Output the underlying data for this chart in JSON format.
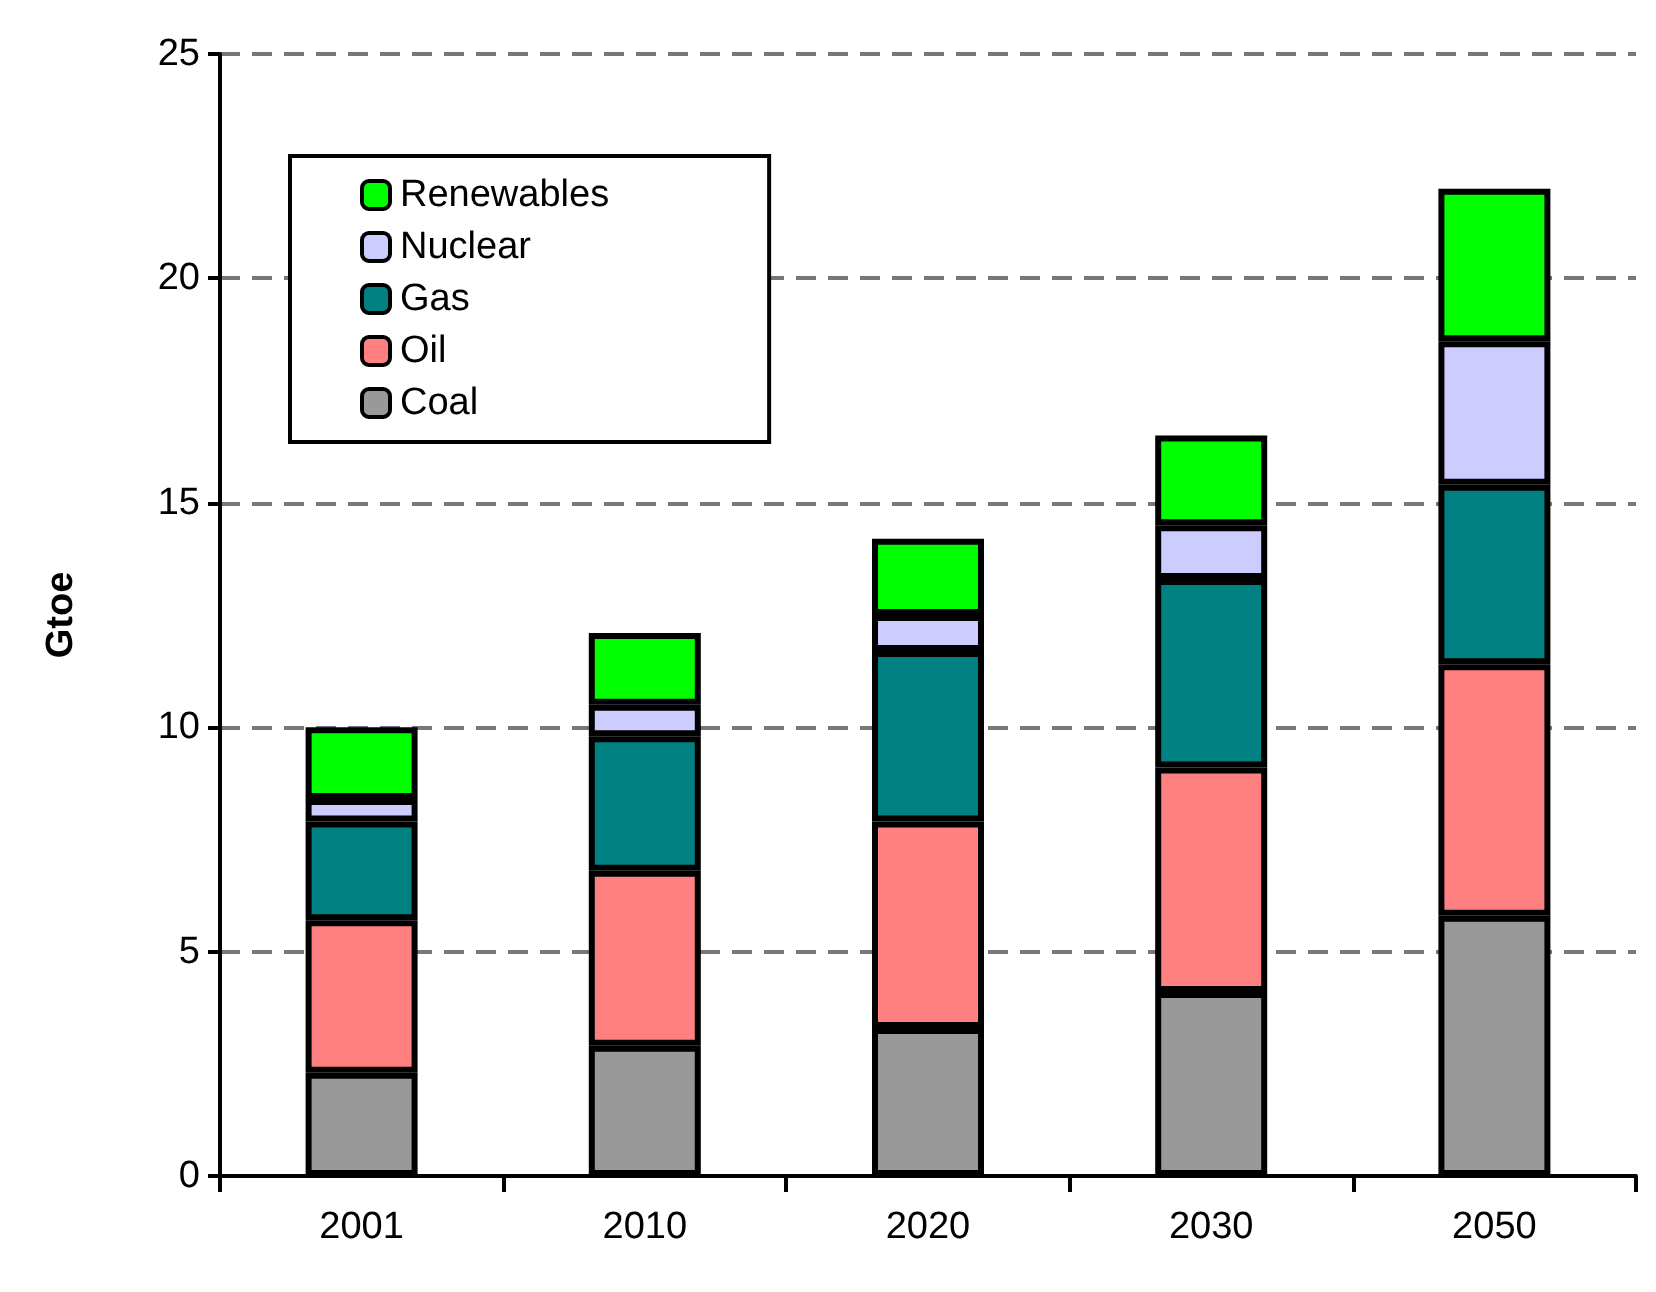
{
  "chart_data": {
    "type": "bar",
    "stacked": true,
    "ylabel": "Gtoe",
    "categories": [
      "2001",
      "2010",
      "2020",
      "2030",
      "2050"
    ],
    "series": [
      {
        "name": "Coal",
        "color": "#999999",
        "values": [
          2.3,
          2.9,
          3.3,
          4.1,
          5.8
        ]
      },
      {
        "name": "Oil",
        "color": "#ff8080",
        "values": [
          3.4,
          3.9,
          4.6,
          5.0,
          5.6
        ]
      },
      {
        "name": "Gas",
        "color": "#008080",
        "values": [
          2.2,
          3.0,
          3.8,
          4.2,
          4.0
        ]
      },
      {
        "name": "Nuclear",
        "color": "#ccccff",
        "values": [
          0.5,
          0.7,
          0.8,
          1.2,
          3.2
        ]
      },
      {
        "name": "Renewables",
        "color": "#00ff00",
        "values": [
          1.6,
          1.6,
          1.7,
          2.0,
          3.4
        ]
      }
    ],
    "ylim": [
      0,
      25
    ],
    "yticks": [
      0,
      5,
      10,
      15,
      20,
      25
    ],
    "grid": "y",
    "legend": "top left"
  }
}
